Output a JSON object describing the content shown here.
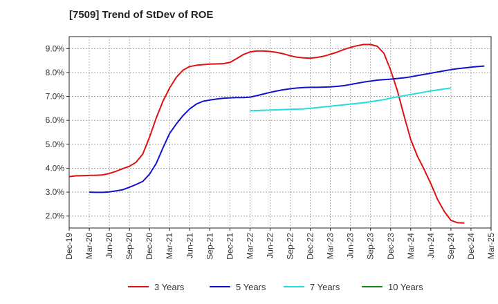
{
  "chart_data": {
    "type": "line",
    "title": "[7509]  Trend of StDev of ROE",
    "xlabel": "",
    "ylabel": "",
    "x_ticks": [
      "Dec-19",
      "Mar-20",
      "Jun-20",
      "Sep-20",
      "Dec-20",
      "Mar-21",
      "Jun-21",
      "Sep-21",
      "Dec-21",
      "Mar-22",
      "Jun-22",
      "Sep-22",
      "Dec-22",
      "Mar-23",
      "Jun-23",
      "Sep-23",
      "Dec-23",
      "Mar-24",
      "Jun-24",
      "Sep-24",
      "Dec-24",
      "Mar-25"
    ],
    "y_ticks": [
      "2.0%",
      "3.0%",
      "4.0%",
      "5.0%",
      "6.0%",
      "7.0%",
      "8.0%",
      "9.0%"
    ],
    "ylim": [
      1.5,
      9.5
    ],
    "grid": true,
    "legend_position": "bottom",
    "series": [
      {
        "name": "3 Years",
        "color": "#dd1111",
        "x_start": "Dec-19",
        "values": [
          3.65,
          3.68,
          3.69,
          3.7,
          3.7,
          3.72,
          3.78,
          3.87,
          3.98,
          4.08,
          4.25,
          4.6,
          5.3,
          6.1,
          6.8,
          7.35,
          7.8,
          8.1,
          8.25,
          8.3,
          8.33,
          8.35,
          8.36,
          8.37,
          8.42,
          8.58,
          8.75,
          8.86,
          8.9,
          8.9,
          8.88,
          8.84,
          8.78,
          8.7,
          8.64,
          8.61,
          8.6,
          8.63,
          8.68,
          8.76,
          8.85,
          8.96,
          9.05,
          9.12,
          9.17,
          9.17,
          9.1,
          8.8,
          8.1,
          7.25,
          6.2,
          5.2,
          4.5,
          3.95,
          3.35,
          2.7,
          2.2,
          1.82,
          1.72,
          1.71
        ]
      },
      {
        "name": "5 Years",
        "color": "#1111cc",
        "x_start": "Dec-20",
        "x_start_note": "",
        "values_start_month": "Mar-20",
        "values": [
          3.0,
          2.99,
          2.99,
          3.01,
          3.05,
          3.1,
          3.2,
          3.32,
          3.45,
          3.75,
          4.2,
          4.85,
          5.45,
          5.85,
          6.2,
          6.48,
          6.68,
          6.8,
          6.85,
          6.89,
          6.92,
          6.94,
          6.95,
          6.95,
          6.97,
          7.03,
          7.1,
          7.17,
          7.23,
          7.28,
          7.32,
          7.35,
          7.37,
          7.38,
          7.38,
          7.39,
          7.4,
          7.42,
          7.45,
          7.5,
          7.55,
          7.6,
          7.64,
          7.68,
          7.7,
          7.72,
          7.75,
          7.78,
          7.82,
          7.87,
          7.92,
          7.97,
          8.02,
          8.07,
          8.12,
          8.16,
          8.19,
          8.22,
          8.25,
          8.27
        ]
      },
      {
        "name": "7 Years",
        "color": "#22dddd",
        "values_start_month": "Mar-22",
        "values": [
          6.4,
          6.41,
          6.42,
          6.43,
          6.44,
          6.45,
          6.46,
          6.47,
          6.48,
          6.5,
          6.53,
          6.56,
          6.59,
          6.62,
          6.65,
          6.68,
          6.71,
          6.74,
          6.78,
          6.82,
          6.87,
          6.93,
          6.98,
          7.03,
          7.08,
          7.13,
          7.18,
          7.23,
          7.27,
          7.31,
          7.35
        ]
      },
      {
        "name": "10 Years",
        "color": "#118811",
        "values": []
      }
    ]
  }
}
